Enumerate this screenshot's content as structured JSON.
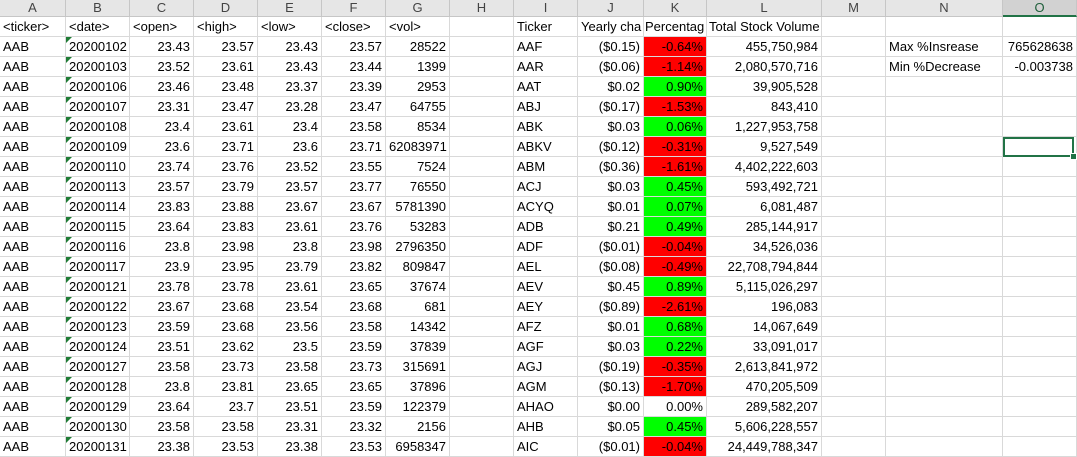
{
  "columns": [
    "A",
    "B",
    "C",
    "D",
    "E",
    "F",
    "G",
    "H",
    "I",
    "J",
    "K",
    "L",
    "M",
    "N",
    "O"
  ],
  "selected_column": "O",
  "row0": {
    "a": "<ticker>",
    "b": "<date>",
    "c": "<open>",
    "d": "<high>",
    "e": "<low>",
    "f": "<close>",
    "g": "<vol>",
    "i": "Ticker",
    "j": "Yearly cha",
    "k": "Percentag",
    "l": "Total Stock Volume"
  },
  "summary": [
    {
      "label": "Max %Insrease",
      "value": "765628638"
    },
    {
      "label": "Min %Decrease",
      "value": "-0.003738"
    }
  ],
  "rows": [
    [
      "AAB",
      "20200102",
      "23.43",
      "23.57",
      "23.43",
      "23.57",
      "28522",
      "AAF",
      "($0.15)",
      "-0.64%",
      "455,750,984",
      "red"
    ],
    [
      "AAB",
      "20200103",
      "23.52",
      "23.61",
      "23.43",
      "23.44",
      "1399",
      "AAR",
      "($0.06)",
      "-1.14%",
      "2,080,570,716",
      "red"
    ],
    [
      "AAB",
      "20200106",
      "23.46",
      "23.48",
      "23.37",
      "23.39",
      "2953",
      "AAT",
      "$0.02",
      "0.90%",
      "39,905,528",
      "green"
    ],
    [
      "AAB",
      "20200107",
      "23.31",
      "23.47",
      "23.28",
      "23.47",
      "64755",
      "ABJ",
      "($0.17)",
      "-1.53%",
      "843,410",
      "red"
    ],
    [
      "AAB",
      "20200108",
      "23.4",
      "23.61",
      "23.4",
      "23.58",
      "8534",
      "ABK",
      "$0.03",
      "0.06%",
      "1,227,953,758",
      "green"
    ],
    [
      "AAB",
      "20200109",
      "23.6",
      "23.71",
      "23.6",
      "23.71",
      "62083971",
      "ABKV",
      "($0.12)",
      "-0.31%",
      "9,527,549",
      "red"
    ],
    [
      "AAB",
      "20200110",
      "23.74",
      "23.76",
      "23.52",
      "23.55",
      "7524",
      "ABM",
      "($0.36)",
      "-1.61%",
      "4,402,222,603",
      "red"
    ],
    [
      "AAB",
      "20200113",
      "23.57",
      "23.79",
      "23.57",
      "23.77",
      "76550",
      "ACJ",
      "$0.03",
      "0.45%",
      "593,492,721",
      "green"
    ],
    [
      "AAB",
      "20200114",
      "23.83",
      "23.88",
      "23.67",
      "23.67",
      "5781390",
      "ACYQ",
      "$0.01",
      "0.07%",
      "6,081,487",
      "green"
    ],
    [
      "AAB",
      "20200115",
      "23.64",
      "23.83",
      "23.61",
      "23.76",
      "53283",
      "ADB",
      "$0.21",
      "0.49%",
      "285,144,917",
      "green"
    ],
    [
      "AAB",
      "20200116",
      "23.8",
      "23.98",
      "23.8",
      "23.98",
      "2796350",
      "ADF",
      "($0.01)",
      "-0.04%",
      "34,526,036",
      "red"
    ],
    [
      "AAB",
      "20200117",
      "23.9",
      "23.95",
      "23.79",
      "23.82",
      "809847",
      "AEL",
      "($0.08)",
      "-0.49%",
      "22,708,794,844",
      "red"
    ],
    [
      "AAB",
      "20200121",
      "23.78",
      "23.78",
      "23.61",
      "23.65",
      "37674",
      "AEV",
      "$0.45",
      "0.89%",
      "5,115,026,297",
      "green"
    ],
    [
      "AAB",
      "20200122",
      "23.67",
      "23.68",
      "23.54",
      "23.68",
      "681",
      "AEY",
      "($0.89)",
      "-2.61%",
      "196,083",
      "red"
    ],
    [
      "AAB",
      "20200123",
      "23.59",
      "23.68",
      "23.56",
      "23.58",
      "14342",
      "AFZ",
      "$0.01",
      "0.68%",
      "14,067,649",
      "green"
    ],
    [
      "AAB",
      "20200124",
      "23.51",
      "23.62",
      "23.5",
      "23.59",
      "37839",
      "AGF",
      "$0.03",
      "0.22%",
      "33,091,017",
      "green"
    ],
    [
      "AAB",
      "20200127",
      "23.58",
      "23.73",
      "23.58",
      "23.73",
      "315691",
      "AGJ",
      "($0.19)",
      "-0.35%",
      "2,613,841,972",
      "red"
    ],
    [
      "AAB",
      "20200128",
      "23.8",
      "23.81",
      "23.65",
      "23.65",
      "37896",
      "AGM",
      "($0.13)",
      "-1.70%",
      "470,205,509",
      "red"
    ],
    [
      "AAB",
      "20200129",
      "23.64",
      "23.7",
      "23.51",
      "23.59",
      "122379",
      "AHAO",
      "$0.00",
      "0.00%",
      "289,582,207",
      "none"
    ],
    [
      "AAB",
      "20200130",
      "23.58",
      "23.58",
      "23.31",
      "23.32",
      "2156",
      "AHB",
      "$0.05",
      "0.45%",
      "5,606,228,557",
      "green"
    ],
    [
      "AAB",
      "20200131",
      "23.38",
      "23.53",
      "23.38",
      "23.53",
      "6958347",
      "AIC",
      "($0.01)",
      "-0.04%",
      "24,449,788,347",
      "red"
    ]
  ],
  "colors": {
    "positive": "#00ff00",
    "negative": "#ff0000",
    "selection": "#217346"
  }
}
